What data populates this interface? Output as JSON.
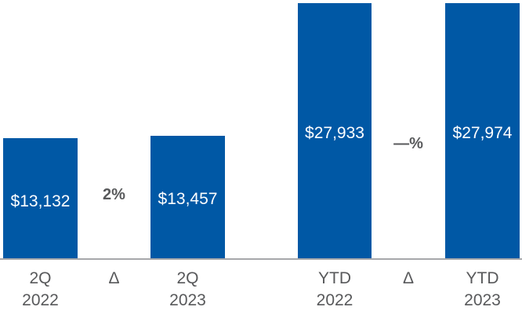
{
  "chart_data": {
    "type": "bar",
    "title": "",
    "categories": [
      "2Q 2022",
      "Δ",
      "2Q 2023",
      "YTD 2022",
      "Δ",
      "YTD 2023"
    ],
    "bars": [
      {
        "label": [
          "2Q",
          "2022"
        ],
        "value": 13132,
        "value_label": "$13,132"
      },
      {
        "label": [
          "2Q",
          "2023"
        ],
        "value": 13457,
        "value_label": "$13,457"
      },
      {
        "label": [
          "YTD",
          "2022"
        ],
        "value": 27933,
        "value_label": "$27,933"
      },
      {
        "label": [
          "YTD",
          "2023"
        ],
        "value": 27974,
        "value_label": "$27,974"
      }
    ],
    "deltas": [
      {
        "symbol": "Δ",
        "value_label": "2%"
      },
      {
        "symbol": "Δ",
        "value_label": "—%"
      }
    ],
    "ylim": [
      0,
      27974
    ],
    "grid": false,
    "legend": false,
    "colors": {
      "bar": "#0058A5",
      "bar_value_text": "#FFFFFF",
      "delta_text": "#58595B",
      "axis_text": "#58595B",
      "baseline": "#A6A8AB"
    }
  }
}
